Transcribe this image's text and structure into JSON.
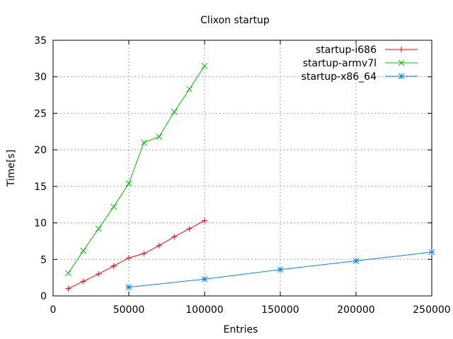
{
  "chart_data": {
    "type": "line",
    "title": "Clixon startup",
    "xlabel": "Entries",
    "ylabel": "Time[s]",
    "xlim": [
      0,
      250000
    ],
    "ylim": [
      0,
      35
    ],
    "xticks": [
      "0",
      "50000",
      "100000",
      "150000",
      "200000",
      "250000"
    ],
    "yticks": [
      "0",
      "5",
      "10",
      "15",
      "20",
      "25",
      "30",
      "35"
    ],
    "grid": true,
    "legend_position": "top-right",
    "series": [
      {
        "name": "startup-i686",
        "color": "#ff0000",
        "marker": "plus",
        "x": [
          10000,
          20000,
          30000,
          40000,
          50000,
          60000,
          70000,
          80000,
          90000,
          100000
        ],
        "y": [
          1.0,
          2.0,
          3.0,
          4.1,
          5.2,
          5.8,
          6.9,
          8.1,
          9.2,
          10.3
        ]
      },
      {
        "name": "startup-armv7l",
        "color": "#00c000",
        "marker": "cross",
        "x": [
          10000,
          20000,
          30000,
          40000,
          50000,
          60000,
          70000,
          80000,
          90000,
          100000
        ],
        "y": [
          3.1,
          6.2,
          9.2,
          12.2,
          15.4,
          21.0,
          21.8,
          25.2,
          28.3,
          31.5
        ]
      },
      {
        "name": "startup-x86_64",
        "color": "#0080ff",
        "marker": "star",
        "x": [
          50000,
          100000,
          150000,
          200000,
          250000
        ],
        "y": [
          1.2,
          2.3,
          3.6,
          4.8,
          6.0
        ]
      }
    ]
  }
}
